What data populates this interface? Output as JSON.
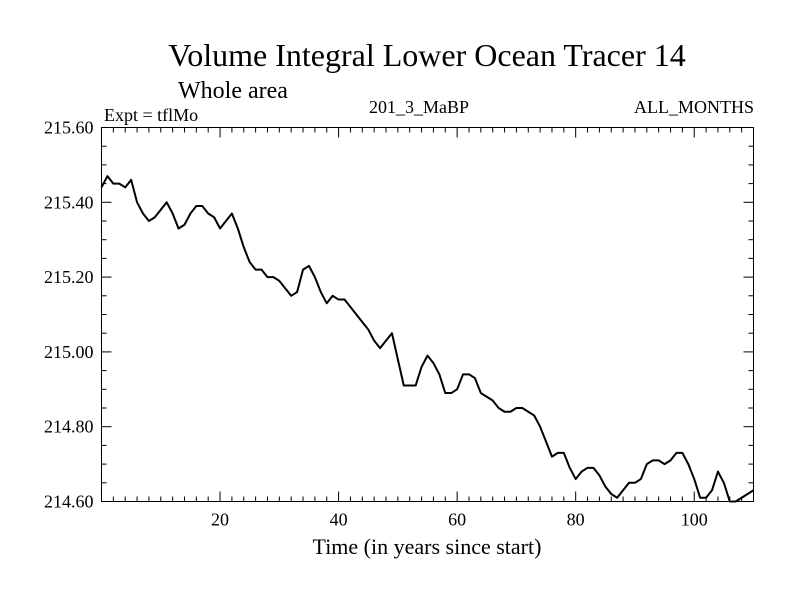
{
  "header": {
    "title": "Volume Integral Lower Ocean Tracer 14",
    "subtitle": "Whole area",
    "experiment": "Expt = tflMo",
    "run_id": "201_3_MaBP",
    "period": "ALL_MONTHS"
  },
  "chart_data": {
    "type": "line",
    "title": "Volume Integral Lower Ocean Tracer 14",
    "subtitle": "Whole area",
    "xlabel": "Time (in years since start)",
    "ylabel": "",
    "xlim": [
      0,
      110
    ],
    "ylim": [
      214.6,
      215.6
    ],
    "grid": false,
    "x_ticks": [
      20,
      40,
      60,
      80,
      100
    ],
    "x_tick_labels": [
      "20",
      "40",
      "60",
      "80",
      "100"
    ],
    "y_ticks": [
      214.6,
      214.8,
      215.0,
      215.2,
      215.4,
      215.6
    ],
    "y_tick_labels": [
      "214.60",
      "214.80",
      "215.00",
      "215.20",
      "215.40",
      "215.60"
    ],
    "series": [
      {
        "name": "Tracer 14",
        "color": "#000000",
        "x": [
          0,
          1,
          2,
          3,
          4,
          5,
          6,
          7,
          8,
          9,
          10,
          11,
          12,
          13,
          14,
          15,
          16,
          17,
          18,
          19,
          20,
          21,
          22,
          23,
          24,
          25,
          26,
          27,
          28,
          29,
          30,
          31,
          32,
          33,
          34,
          35,
          36,
          37,
          38,
          39,
          40,
          41,
          42,
          43,
          44,
          45,
          46,
          47,
          48,
          49,
          50,
          51,
          52,
          53,
          54,
          55,
          56,
          57,
          58,
          59,
          60,
          61,
          62,
          63,
          64,
          65,
          66,
          67,
          68,
          69,
          70,
          71,
          72,
          73,
          74,
          75,
          76,
          77,
          78,
          79,
          80,
          81,
          82,
          83,
          84,
          85,
          86,
          87,
          88,
          89,
          90,
          91,
          92,
          93,
          94,
          95,
          96,
          97,
          98,
          99,
          100,
          101,
          102,
          103,
          104,
          105,
          106,
          107,
          108,
          109,
          110
        ],
        "values": [
          215.44,
          215.47,
          215.45,
          215.45,
          215.44,
          215.46,
          215.4,
          215.37,
          215.35,
          215.36,
          215.38,
          215.4,
          215.37,
          215.33,
          215.34,
          215.37,
          215.39,
          215.39,
          215.37,
          215.36,
          215.33,
          215.35,
          215.37,
          215.33,
          215.28,
          215.24,
          215.22,
          215.22,
          215.2,
          215.2,
          215.19,
          215.17,
          215.15,
          215.16,
          215.22,
          215.23,
          215.2,
          215.16,
          215.13,
          215.15,
          215.14,
          215.14,
          215.12,
          215.1,
          215.08,
          215.06,
          215.03,
          215.01,
          215.03,
          215.05,
          214.98,
          214.91,
          214.91,
          214.91,
          214.96,
          214.99,
          214.97,
          214.94,
          214.89,
          214.89,
          214.9,
          214.94,
          214.94,
          214.93,
          214.89,
          214.88,
          214.87,
          214.85,
          214.84,
          214.84,
          214.85,
          214.85,
          214.84,
          214.83,
          214.8,
          214.76,
          214.72,
          214.73,
          214.73,
          214.69,
          214.66,
          214.68,
          214.69,
          214.69,
          214.67,
          214.64,
          214.62,
          214.61,
          214.63,
          214.65,
          214.65,
          214.66,
          214.7,
          214.71,
          214.71,
          214.7,
          214.71,
          214.73,
          214.73,
          214.7,
          214.66,
          214.61,
          214.61,
          214.63,
          214.68,
          214.65,
          214.6,
          214.6,
          214.61,
          214.62,
          214.63
        ]
      }
    ]
  }
}
